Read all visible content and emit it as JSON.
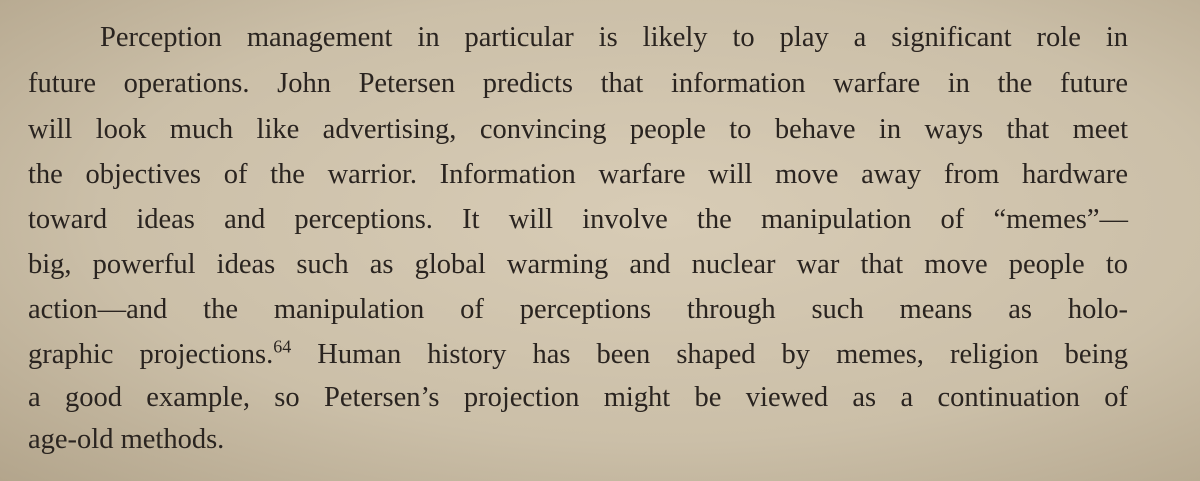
{
  "paragraph": {
    "lines": [
      "Perception management in particular is likely to play a significant role in",
      "future operations. John Petersen predicts that information warfare in the future",
      "will look much like advertising, convincing people to behave in ways that meet",
      "the objectives of the warrior. Information warfare will move away from hardware",
      "toward ideas and perceptions. It will involve the manipulation of “memes”—",
      "big, powerful ideas such as global warming and nuclear war that move people to",
      "action—and the manipulation of perceptions through such means as holo-",
      "graphic projections.",
      "a good example, so Petersen’s projection might be viewed as a continuation of",
      "age-old methods."
    ],
    "footnote_ref": "64",
    "line_7_rest": " Human history has been shaped by memes, religion being"
  }
}
